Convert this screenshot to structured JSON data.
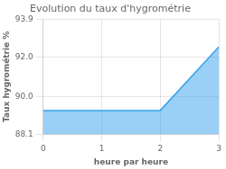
{
  "chart_data": {
    "type": "area",
    "title": "Evolution du taux d'hygrométrie",
    "xlabel": "heure par heure",
    "ylabel": "Taux hygrométrie %",
    "x": [
      0,
      2,
      3
    ],
    "values": [
      89.3,
      89.3,
      92.5
    ],
    "xlim": [
      0,
      3
    ],
    "ylim": [
      88.1,
      93.9
    ],
    "xticks": [
      0,
      1,
      2,
      3
    ],
    "yticks": [
      88.1,
      {
        "value": 90,
        "label": "90.0"
      },
      {
        "value": 92,
        "label": "92.0"
      },
      93.9
    ],
    "grid": true
  }
}
